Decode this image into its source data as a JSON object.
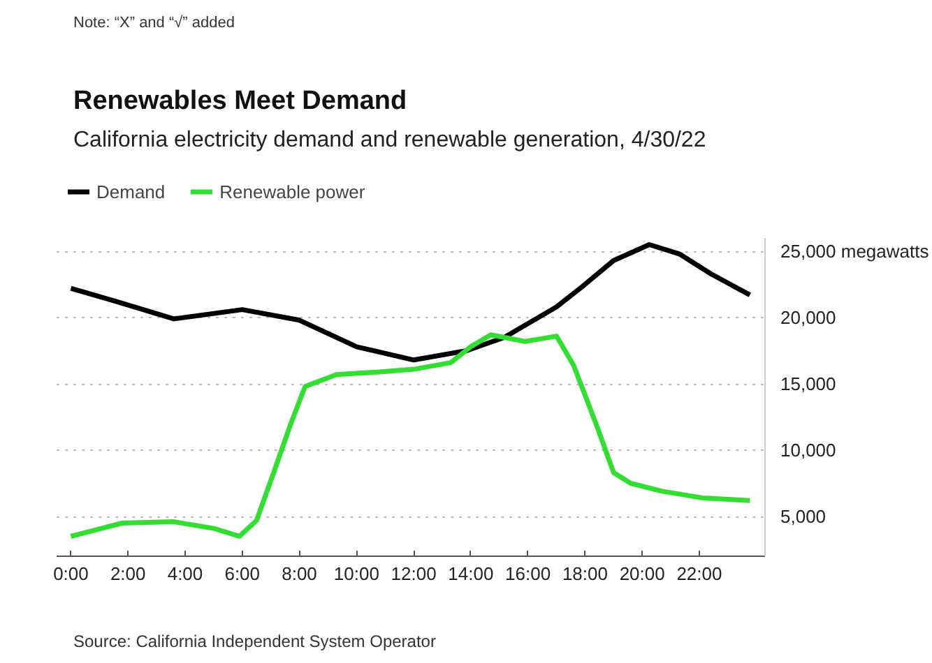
{
  "chart_data": {
    "type": "line",
    "title": "Renewables Meet Demand",
    "subtitle": "California electricity demand and renewable generation, 4/30/22",
    "annotations": [
      "Note: “X” and “√” added",
      "Source: California Independent System Operator"
    ],
    "legend": "top left",
    "grid": "y",
    "line_style": "solid",
    "xlim": [
      -0.5,
      24.3
    ],
    "ylim": [
      2000,
      26000
    ],
    "xticks": [
      {
        "value": 0,
        "label": "0:00"
      },
      {
        "value": 2,
        "label": "2:00"
      },
      {
        "value": 4,
        "label": "4:00"
      },
      {
        "value": 6,
        "label": "6:00"
      },
      {
        "value": 8,
        "label": "8:00"
      },
      {
        "value": 10,
        "label": "10:00"
      },
      {
        "value": 12,
        "label": "12:00"
      },
      {
        "value": 14,
        "label": "14:00"
      },
      {
        "value": 16,
        "label": "16:00"
      },
      {
        "value": 18,
        "label": "18:00"
      },
      {
        "value": 20,
        "label": "20:00"
      },
      {
        "value": 22,
        "label": "22:00"
      }
    ],
    "yticks": [
      {
        "value": 5000,
        "label": "5,000"
      },
      {
        "value": 10000,
        "label": "10,000"
      },
      {
        "value": 15000,
        "label": "15,000"
      },
      {
        "value": 20000,
        "label": "20,000"
      },
      {
        "value": 25000,
        "label": "25,000 megawatts"
      }
    ],
    "series": [
      {
        "name": "Demand",
        "color": "#000000",
        "x": [
          0,
          1.6,
          3.6,
          6.0,
          8.0,
          10.0,
          12.0,
          13.85,
          15.17,
          17.0,
          17.94,
          19.0,
          20.25,
          21.3,
          22.4,
          23.77
        ],
        "values": [
          22200,
          21200,
          19900,
          20600,
          19800,
          17800,
          16800,
          17500,
          18500,
          20800,
          22400,
          24300,
          25500,
          24800,
          23300,
          21700
        ]
      },
      {
        "name": "Renewable power",
        "color": "#33dd33",
        "x": [
          0,
          1.8,
          3.6,
          5.0,
          5.9,
          6.5,
          7.1,
          7.7,
          8.2,
          9.3,
          10.8,
          12.0,
          13.3,
          14.0,
          14.7,
          15.9,
          17.0,
          17.6,
          18.4,
          19.0,
          19.6,
          20.7,
          22.1,
          23.77
        ],
        "values": [
          3500,
          4500,
          4600,
          4100,
          3500,
          4700,
          8300,
          12000,
          14800,
          15700,
          15900,
          16100,
          16600,
          17800,
          18700,
          18200,
          18600,
          16400,
          11900,
          8300,
          7500,
          6900,
          6400,
          6200
        ]
      }
    ]
  }
}
